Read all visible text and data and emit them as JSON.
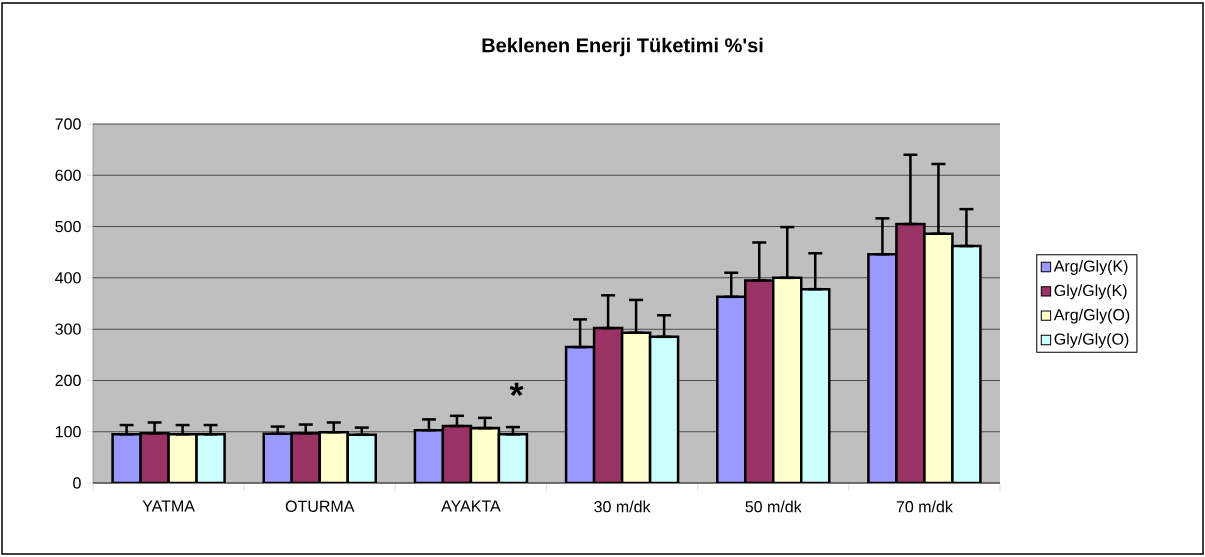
{
  "chart_data": {
    "type": "bar",
    "title": "Beklenen Enerji Tüketimi %'si",
    "categories": [
      "YATMA",
      "OTURMA",
      "AYAKTA",
      "30 m/dk",
      "50 m/dk",
      "70 m/dk"
    ],
    "series": [
      {
        "name": "Arg/Gly(K)",
        "color": "#9999ff",
        "values": [
          95,
          96,
          103,
          265,
          363,
          446
        ],
        "errors": [
          [
            95,
            113
          ],
          [
            96,
            110
          ],
          [
            103,
            124
          ],
          [
            265,
            319
          ],
          [
            363,
            410
          ],
          [
            446,
            516
          ]
        ]
      },
      {
        "name": "Gly/Gly(K)",
        "color": "#993366",
        "values": [
          97,
          97,
          111,
          302,
          395,
          505
        ],
        "errors": [
          [
            97,
            118
          ],
          [
            97,
            114
          ],
          [
            111,
            131
          ],
          [
            302,
            366
          ],
          [
            395,
            469
          ],
          [
            505,
            640
          ]
        ]
      },
      {
        "name": "Arg/Gly(O)",
        "color": "#ffffcc",
        "values": [
          95,
          99,
          107,
          293,
          400,
          486
        ],
        "errors": [
          [
            95,
            113
          ],
          [
            99,
            118
          ],
          [
            107,
            127
          ],
          [
            293,
            357
          ],
          [
            400,
            499
          ],
          [
            486,
            622
          ]
        ]
      },
      {
        "name": "Gly/Gly(O)",
        "color": "#ccffff",
        "values": [
          95,
          94,
          95,
          285,
          378,
          462
        ],
        "errors": [
          [
            95,
            113
          ],
          [
            94,
            108
          ],
          [
            95,
            109
          ],
          [
            285,
            327
          ],
          [
            378,
            448
          ],
          [
            462,
            534
          ]
        ]
      }
    ],
    "ylim": [
      0,
      700
    ],
    "yticks": [
      0,
      100,
      200,
      300,
      400,
      500,
      600,
      700
    ],
    "grid": "y",
    "legend": "right",
    "annotations": [
      "*"
    ]
  }
}
